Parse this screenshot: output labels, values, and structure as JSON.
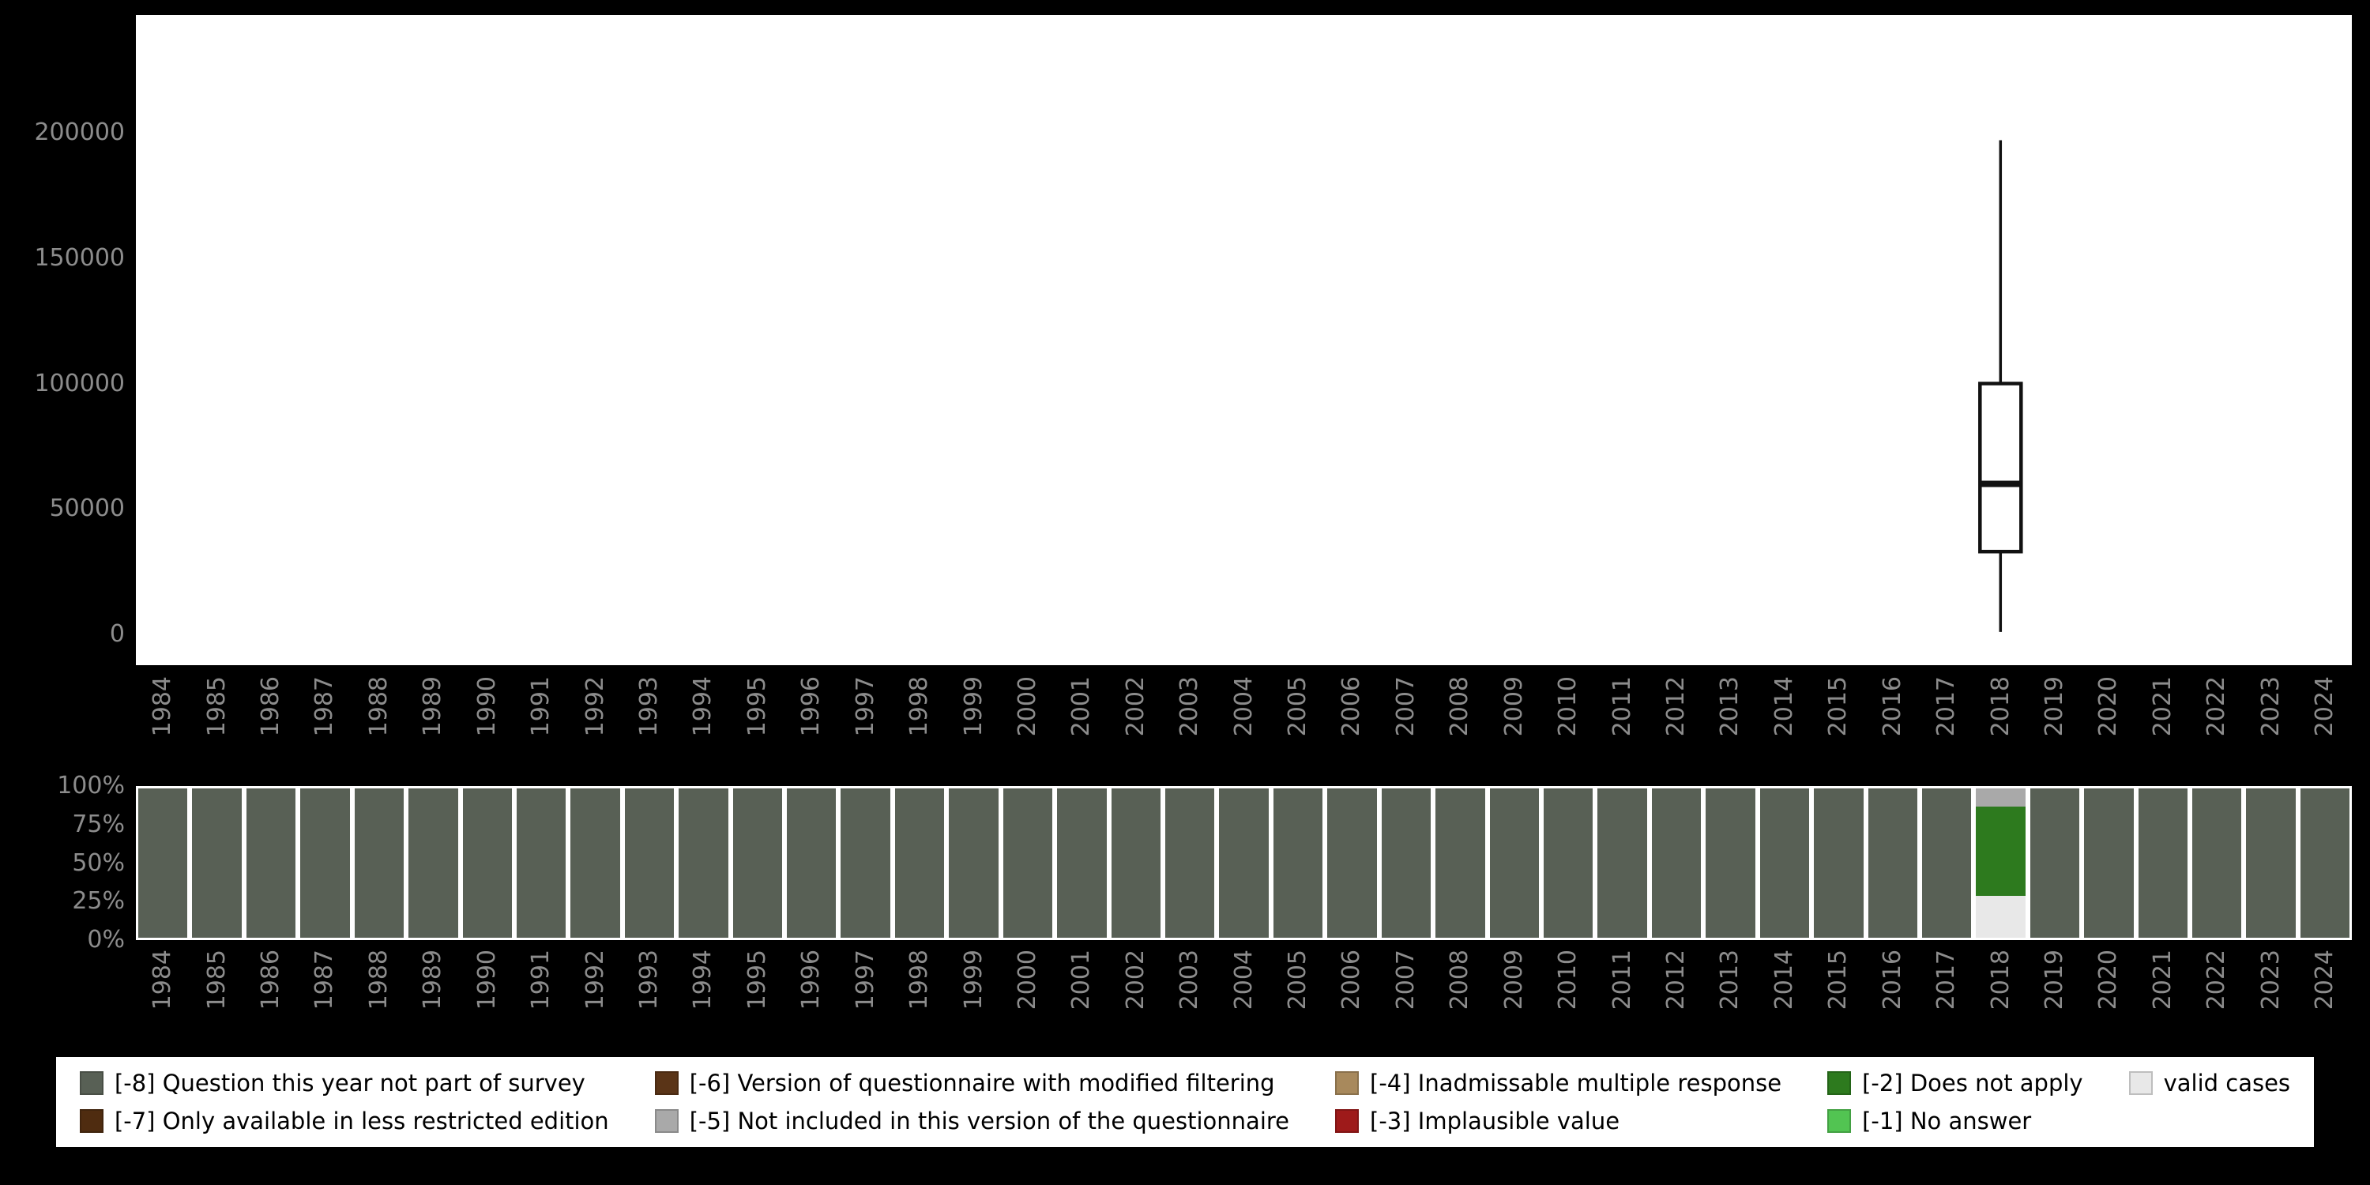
{
  "page": {
    "background": "#000000",
    "axis_text_color": "#8c8c8c"
  },
  "chart_data": [
    {
      "type": "boxplot",
      "title": "",
      "xlabel": "",
      "ylabel": "",
      "x": [
        "1984",
        "1985",
        "1986",
        "1987",
        "1988",
        "1989",
        "1990",
        "1991",
        "1992",
        "1993",
        "1994",
        "1995",
        "1996",
        "1997",
        "1998",
        "1999",
        "2000",
        "2001",
        "2002",
        "2003",
        "2004",
        "2005",
        "2006",
        "2007",
        "2008",
        "2009",
        "2010",
        "2011",
        "2012",
        "2013",
        "2014",
        "2015",
        "2016",
        "2017",
        "2018",
        "2019",
        "2020",
        "2021",
        "2022",
        "2023",
        "2024"
      ],
      "ylim": [
        0,
        240000
      ],
      "yticks": [
        {
          "value": 0,
          "label": "0"
        },
        {
          "value": 50000,
          "label": "50000"
        },
        {
          "value": 100000,
          "label": "100000"
        },
        {
          "value": 150000,
          "label": "150000"
        },
        {
          "value": 200000,
          "label": "200000"
        }
      ],
      "series": [
        {
          "year": "2018",
          "whisker_low": 1000,
          "q1": 33000,
          "median": 60000,
          "q3": 100000,
          "whisker_high": 197000
        }
      ]
    },
    {
      "type": "stacked-bar-percent",
      "title": "",
      "categories": [
        "1984",
        "1985",
        "1986",
        "1987",
        "1988",
        "1989",
        "1990",
        "1991",
        "1992",
        "1993",
        "1994",
        "1995",
        "1996",
        "1997",
        "1998",
        "1999",
        "2000",
        "2001",
        "2002",
        "2003",
        "2004",
        "2005",
        "2006",
        "2007",
        "2008",
        "2009",
        "2010",
        "2011",
        "2012",
        "2013",
        "2014",
        "2015",
        "2016",
        "2017",
        "2018",
        "2019",
        "2020",
        "2021",
        "2022",
        "2023",
        "2024"
      ],
      "yticks": [
        {
          "value": 100,
          "label": "100%"
        },
        {
          "value": 75,
          "label": "75%"
        },
        {
          "value": 50,
          "label": "50%"
        },
        {
          "value": 25,
          "label": "25%"
        },
        {
          "value": 0,
          "label": "0%"
        }
      ],
      "default_segments": [
        {
          "name": "[-8] Question this year not part of survey",
          "color": "#586055",
          "value": 100
        }
      ],
      "bars": {
        "2018": [
          {
            "name": "[-5] Not included in this version of the questionnaire",
            "color": "#a9a9a9",
            "value": 12
          },
          {
            "name": "[-2] Does not apply",
            "color": "#2d7a1e",
            "value": 60
          },
          {
            "name": "valid cases",
            "color": "#e8e8e8",
            "value": 28
          }
        ]
      }
    }
  ],
  "legend": {
    "items": [
      {
        "label": "[-8] Question this year not part of survey",
        "color": "#586055"
      },
      {
        "label": "[-7] Only available in less restricted edition",
        "color": "#4f2c10"
      },
      {
        "label": "[-6] Version of questionnaire with modified filtering",
        "color": "#5a3417"
      },
      {
        "label": "[-5] Not included in this version of the questionnaire",
        "color": "#a9a9a9"
      },
      {
        "label": "[-4] Inadmissable multiple response",
        "color": "#a8895c"
      },
      {
        "label": "[-3] Implausible value",
        "color": "#9e1a1a"
      },
      {
        "label": "[-2] Does not apply",
        "color": "#2d7a1e"
      },
      {
        "label": "[-1] No answer",
        "color": "#52c452"
      },
      {
        "label": "valid cases",
        "color": "#e8e8e8"
      }
    ]
  }
}
